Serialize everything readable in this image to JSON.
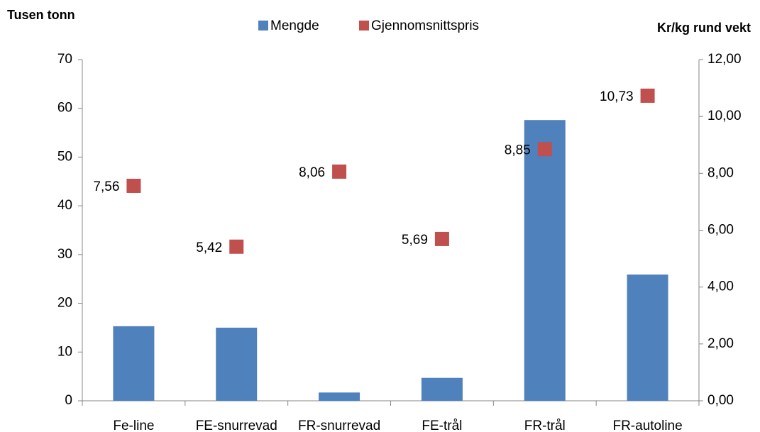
{
  "chart_data": {
    "type": "bar",
    "y_label": "Tusen tonn",
    "y2_label": "Kr/kg rund vekt",
    "categories": [
      "Fe-line",
      "FE-snurrevad",
      "FR-snurrevad",
      "FE-trål",
      "FR-trål",
      "FR-autoline"
    ],
    "series": [
      {
        "name": "Mengde",
        "type": "bar",
        "color": "#4f81bd",
        "values": [
          15.3,
          15.0,
          1.7,
          4.7,
          57.6,
          25.9
        ]
      },
      {
        "name": "Gjennomsnittspris",
        "type": "scatter",
        "axis": "y2",
        "color": "#c0504d",
        "values": [
          7.56,
          5.42,
          8.06,
          5.69,
          8.85,
          10.73
        ],
        "value_labels": [
          "7,56",
          "5,42",
          "8,06",
          "5,69",
          "8,85",
          "10,73"
        ]
      }
    ],
    "ylim": [
      0,
      70
    ],
    "yticks": [
      0,
      10,
      20,
      30,
      40,
      50,
      60,
      70
    ],
    "y2lim": [
      0,
      12
    ],
    "y2ticks": [
      {
        "value": 0,
        "label": "0,00"
      },
      {
        "value": 2,
        "label": "2,00"
      },
      {
        "value": 4,
        "label": "4,00"
      },
      {
        "value": 6,
        "label": "6,00"
      },
      {
        "value": 8,
        "label": "8,00"
      },
      {
        "value": 10,
        "label": "10,00"
      },
      {
        "value": 12,
        "label": "12,00"
      }
    ],
    "legend": "top",
    "grid": false
  }
}
